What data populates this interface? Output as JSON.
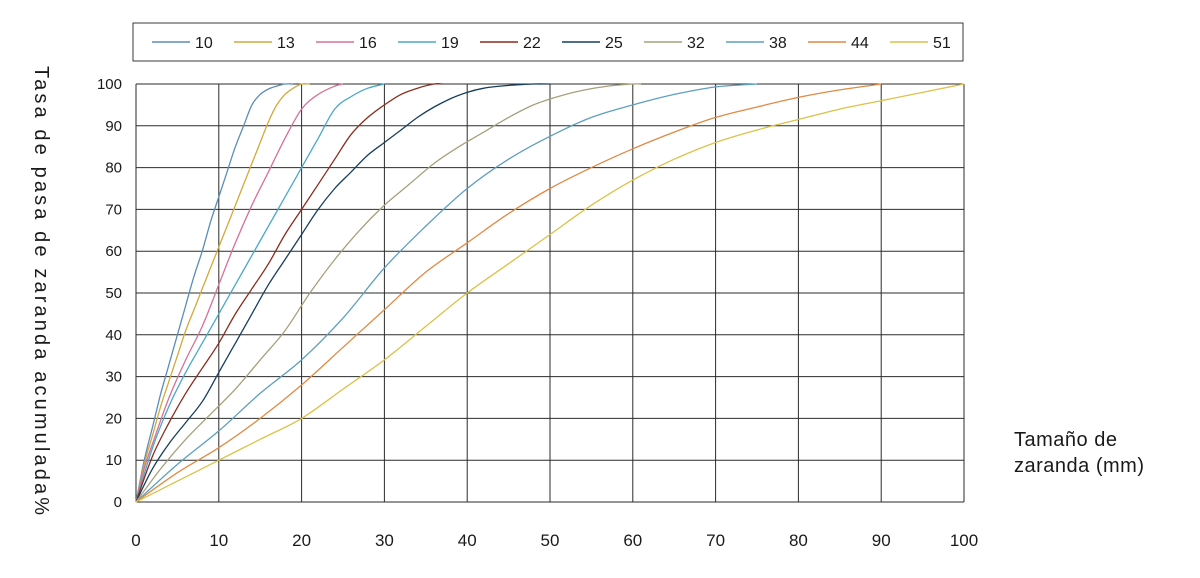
{
  "chart_data": {
    "type": "line",
    "title": "",
    "ylabel": "Tasa de pasa de zaranda acumulada%",
    "xlabel_lines": [
      "Tamaño de",
      "zaranda (mm)"
    ],
    "xlim": [
      0,
      100
    ],
    "ylim": [
      0,
      100
    ],
    "x_ticks": [
      0,
      10,
      20,
      30,
      40,
      50,
      60,
      70,
      80,
      90,
      100
    ],
    "y_ticks": [
      0,
      10,
      20,
      30,
      40,
      50,
      60,
      70,
      80,
      90,
      100
    ],
    "grid": true,
    "legend_position": "top",
    "series": [
      {
        "name": "10",
        "color": "#5b8db8",
        "x": [
          0,
          1,
          2,
          3,
          4,
          5,
          6,
          7,
          8,
          9,
          10,
          11,
          12,
          13,
          14,
          15,
          16,
          17,
          18,
          19
        ],
        "y": [
          0,
          10,
          18,
          26,
          33,
          40,
          47,
          54,
          60,
          67,
          73,
          79,
          85,
          90,
          95,
          97.5,
          98.8,
          99.5,
          100,
          100
        ]
      },
      {
        "name": "13",
        "color": "#d4a839",
        "x": [
          0,
          1,
          2,
          3,
          4,
          5,
          6,
          7,
          8,
          9,
          10,
          11,
          12,
          13,
          14,
          15,
          16,
          17,
          18,
          19,
          20,
          21
        ],
        "y": [
          0,
          9,
          16,
          23,
          29,
          35,
          41,
          46,
          51,
          56,
          61,
          66,
          71,
          76,
          81,
          86,
          91,
          95,
          97.5,
          99,
          100,
          100
        ]
      },
      {
        "name": "16",
        "color": "#d6709a",
        "x": [
          0,
          1,
          2,
          4,
          6,
          8,
          10,
          12,
          14,
          16,
          18,
          20,
          22,
          24,
          25
        ],
        "y": [
          0,
          8,
          14,
          25,
          34,
          42,
          52,
          62,
          71,
          79,
          87,
          94,
          97.5,
          99.5,
          100
        ]
      },
      {
        "name": "19",
        "color": "#4aa8c8",
        "x": [
          0,
          2,
          4,
          6,
          8,
          10,
          12,
          14,
          16,
          18,
          20,
          22,
          24,
          26,
          28,
          30
        ],
        "y": [
          0,
          13,
          23,
          31,
          38,
          45,
          52,
          59,
          66,
          73,
          80,
          87,
          94,
          97,
          99,
          100
        ]
      },
      {
        "name": "22",
        "color": "#8a2c1c",
        "x": [
          0,
          2,
          4,
          6,
          8,
          10,
          12,
          14,
          16,
          18,
          20,
          22,
          24,
          26,
          28,
          30,
          32,
          34,
          36,
          37
        ],
        "y": [
          0,
          11,
          19,
          26,
          32,
          38,
          45,
          51,
          57,
          64,
          70,
          76,
          82,
          88,
          92,
          95,
          97.5,
          99,
          100,
          100
        ]
      },
      {
        "name": "25",
        "color": "#163e5e",
        "x": [
          0,
          2,
          4,
          6,
          8,
          10,
          12,
          14,
          16,
          18,
          20,
          22,
          24,
          26,
          28,
          30,
          32,
          34,
          36,
          38,
          40,
          42,
          44,
          46,
          48,
          50
        ],
        "y": [
          0,
          8,
          14,
          19,
          24,
          31,
          38,
          45,
          52,
          58,
          64,
          70,
          75,
          79,
          83,
          86,
          89,
          92,
          94.5,
          96.5,
          98,
          99,
          99.5,
          99.8,
          100,
          100
        ]
      },
      {
        "name": "32",
        "color": "#a6a07c",
        "x": [
          0,
          3,
          6,
          9,
          12,
          15,
          18,
          21,
          24,
          27,
          30,
          33,
          36,
          39,
          42,
          45,
          48,
          51,
          54,
          57,
          60,
          61
        ],
        "y": [
          0,
          8,
          15,
          21,
          27,
          34,
          41,
          50,
          58,
          65,
          71,
          76,
          81,
          85,
          88.5,
          92,
          95,
          97,
          98.5,
          99.5,
          100,
          100
        ]
      },
      {
        "name": "38",
        "color": "#5d9fbf",
        "x": [
          0,
          5,
          10,
          15,
          20,
          25,
          30,
          35,
          40,
          45,
          50,
          55,
          60,
          65,
          70,
          75
        ],
        "y": [
          0,
          9,
          17,
          26,
          34,
          44,
          56,
          66,
          75,
          82,
          87.5,
          92,
          95,
          97.5,
          99.3,
          100
        ]
      },
      {
        "name": "44",
        "color": "#e08a44",
        "x": [
          0,
          5,
          10,
          15,
          20,
          25,
          30,
          35,
          40,
          45,
          50,
          55,
          60,
          65,
          70,
          75,
          80,
          85,
          90
        ],
        "y": [
          0,
          7,
          13,
          20,
          28,
          37,
          46,
          55,
          62,
          69,
          75,
          80,
          84.5,
          88.5,
          92,
          94.5,
          96.8,
          98.6,
          100
        ]
      },
      {
        "name": "51",
        "color": "#ddc146",
        "x": [
          0,
          5,
          10,
          15,
          20,
          25,
          30,
          35,
          40,
          45,
          50,
          55,
          60,
          65,
          70,
          75,
          80,
          85,
          90,
          95,
          100
        ],
        "y": [
          0,
          5,
          10,
          15,
          20,
          27,
          34,
          42,
          50,
          57,
          64,
          71,
          77,
          82,
          86,
          89,
          91.5,
          94,
          96,
          98,
          100
        ]
      }
    ]
  }
}
